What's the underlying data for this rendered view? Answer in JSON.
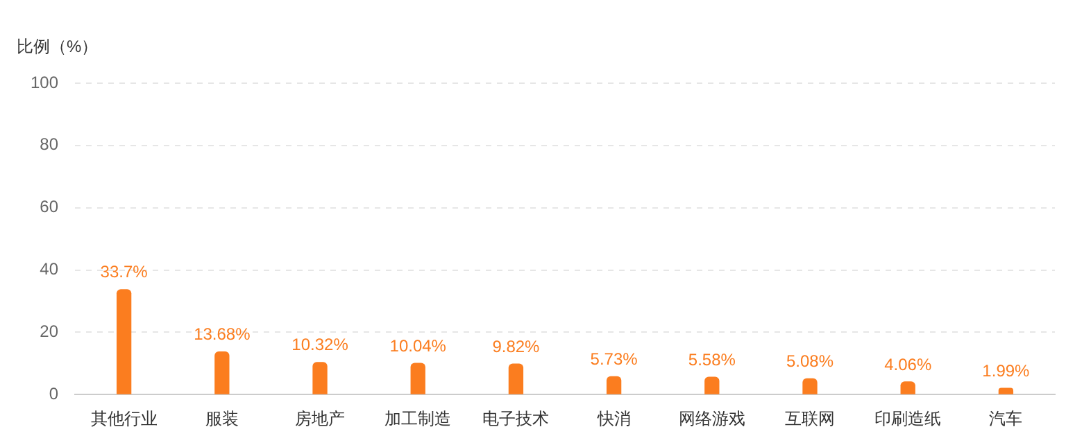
{
  "chart_data": {
    "type": "bar",
    "ylabel": "比例（%）",
    "categories": [
      "其他行业",
      "服装",
      "房地产",
      "加工制造",
      "电子技术",
      "快消",
      "网络游戏",
      "互联网",
      "印刷造纸",
      "汽车"
    ],
    "values": [
      33.7,
      13.68,
      10.32,
      10.04,
      9.82,
      5.73,
      5.58,
      5.08,
      4.06,
      1.99
    ],
    "value_labels": [
      "33.7%",
      "13.68%",
      "10.32%",
      "10.04%",
      "9.82%",
      "5.73%",
      "5.58%",
      "5.08%",
      "4.06%",
      "1.99%"
    ],
    "color": "#fb7d1f",
    "ylim": [
      0,
      100
    ],
    "yticks": [
      0,
      20,
      40,
      60,
      80,
      100
    ],
    "grid": "y"
  }
}
